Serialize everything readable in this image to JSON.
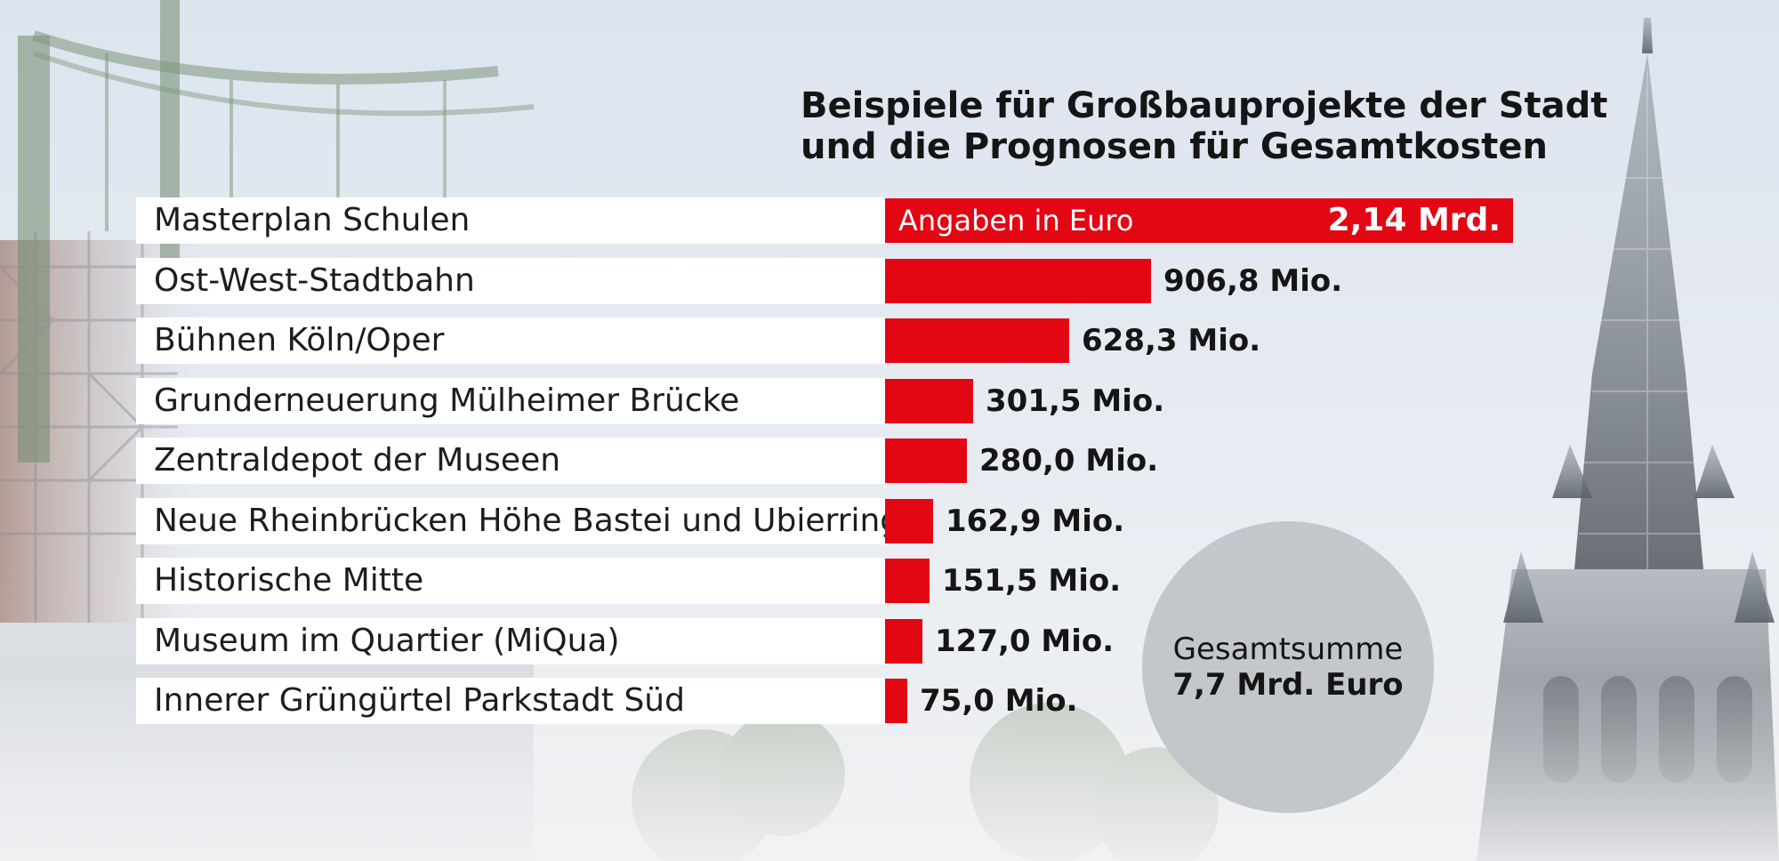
{
  "chart_data": {
    "type": "bar",
    "orientation": "horizontal",
    "title": "Beispiele für Großbauprojekte der Stadt und die Prognosen für Gesamtkosten",
    "title_lines": [
      "Beispiele für Großbauprojekte der Stadt",
      "und die Prognosen für Gesamtkosten"
    ],
    "note": "Angaben in Euro",
    "categories": [
      "Masterplan Schulen",
      "Ost-West-Stadtbahn",
      "Bühnen Köln/Oper",
      "Grunderneuerung Mülheimer Brücke",
      "Zentraldepot der Museen",
      "Neue Rheinbrücken Höhe Bastei und Ubierring",
      "Historische Mitte",
      "Museum im Quartier (MiQua)",
      "Innerer Grüngürtel Parkstadt Süd"
    ],
    "values": [
      2140,
      906.8,
      628.3,
      301.5,
      280.0,
      162.9,
      151.5,
      127.0,
      75.0
    ],
    "value_unit": "Mio. Euro",
    "value_labels": [
      "2,14 Mrd.",
      "906,8  Mio.",
      "628,3  Mio.",
      "301,5  Mio.",
      "280,0  Mio.",
      "162,9  Mio.",
      "151,5 Mio.",
      "127,0  Mio.",
      "75,0  Mio."
    ],
    "bar_color": "#e30613",
    "grid": false,
    "legend": "none",
    "total": {
      "label": "Gesamtsumme",
      "value_text": "7,7 Mrd. Euro"
    }
  }
}
